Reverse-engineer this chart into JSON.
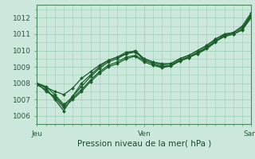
{
  "title": "",
  "xlabel": "Pression niveau de la mer( hPa )",
  "bg_color": "#cce8dc",
  "grid_color": "#99ccb3",
  "line_color": "#1a5e2a",
  "ylim": [
    1005.5,
    1012.8
  ],
  "xlim": [
    0,
    48
  ],
  "xticks": [
    0,
    24,
    48
  ],
  "xtick_labels": [
    "Jeu",
    "Ven",
    "Sam"
  ],
  "yticks": [
    1006,
    1007,
    1008,
    1009,
    1010,
    1011,
    1012
  ],
  "series": [
    [
      0,
      1008.0,
      2,
      1007.7,
      4,
      1007.0,
      6,
      1006.3,
      8,
      1007.2,
      10,
      1008.0,
      12,
      1008.5,
      14,
      1009.0,
      16,
      1009.4,
      18,
      1009.6,
      20,
      1009.8,
      22,
      1010.0,
      24,
      1009.5,
      26,
      1009.3,
      28,
      1009.2,
      30,
      1009.2,
      32,
      1009.5,
      34,
      1009.7,
      36,
      1010.0,
      38,
      1010.3,
      40,
      1010.7,
      42,
      1011.0,
      44,
      1011.1,
      46,
      1011.5,
      48,
      1012.3
    ],
    [
      0,
      1008.0,
      4,
      1007.5,
      6,
      1007.3,
      8,
      1007.7,
      10,
      1008.3,
      12,
      1008.7,
      14,
      1009.1,
      16,
      1009.4,
      18,
      1009.6,
      20,
      1009.9,
      22,
      1009.95,
      24,
      1009.4,
      26,
      1009.2,
      28,
      1009.0,
      30,
      1009.1,
      32,
      1009.4,
      34,
      1009.6,
      36,
      1009.8,
      38,
      1010.1,
      40,
      1010.5,
      42,
      1011.0,
      44,
      1011.0,
      46,
      1011.3,
      48,
      1012.1
    ],
    [
      0,
      1007.9,
      2,
      1007.6,
      4,
      1007.1,
      6,
      1006.5,
      8,
      1007.0,
      10,
      1007.5,
      12,
      1008.1,
      14,
      1008.6,
      16,
      1009.0,
      18,
      1009.2,
      20,
      1009.5,
      22,
      1009.65,
      24,
      1009.3,
      26,
      1009.1,
      28,
      1008.95,
      30,
      1009.05,
      32,
      1009.35,
      34,
      1009.55,
      36,
      1009.85,
      38,
      1010.15,
      40,
      1010.55,
      42,
      1010.85,
      44,
      1011.0,
      46,
      1011.25,
      48,
      1012.0
    ],
    [
      0,
      1008.0,
      2,
      1007.8,
      4,
      1007.3,
      6,
      1006.7,
      8,
      1007.1,
      10,
      1007.6,
      12,
      1008.2,
      14,
      1008.7,
      16,
      1009.1,
      18,
      1009.3,
      20,
      1009.6,
      22,
      1009.7,
      24,
      1009.4,
      26,
      1009.2,
      28,
      1009.0,
      30,
      1009.1,
      32,
      1009.4,
      34,
      1009.6,
      36,
      1009.9,
      38,
      1010.2,
      40,
      1010.6,
      42,
      1010.9,
      44,
      1011.0,
      46,
      1011.3,
      48,
      1012.15
    ],
    [
      0,
      1008.0,
      2,
      1007.5,
      4,
      1007.2,
      6,
      1006.6,
      8,
      1007.2,
      10,
      1007.8,
      12,
      1008.4,
      14,
      1008.9,
      16,
      1009.3,
      18,
      1009.5,
      20,
      1009.8,
      22,
      1009.9,
      24,
      1009.5,
      26,
      1009.3,
      28,
      1009.1,
      30,
      1009.2,
      32,
      1009.5,
      34,
      1009.7,
      36,
      1010.0,
      38,
      1010.3,
      40,
      1010.7,
      42,
      1011.0,
      44,
      1011.1,
      46,
      1011.4,
      48,
      1012.2
    ]
  ]
}
